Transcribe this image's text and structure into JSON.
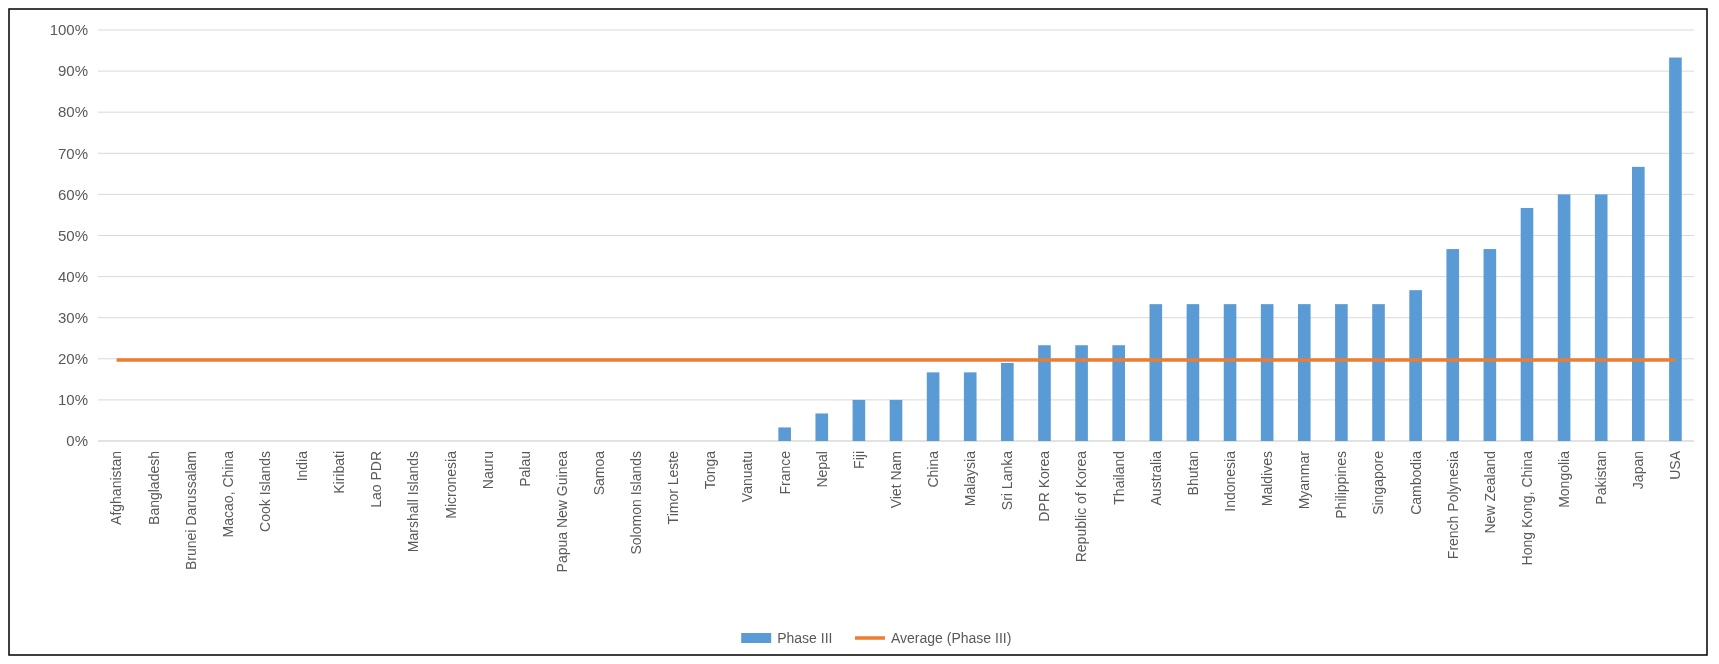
{
  "chart_data": {
    "type": "bar",
    "categories": [
      "Afghanistan",
      "Bangladesh",
      "Brunei Darussalam",
      "Macao, China",
      "Cook Islands",
      "India",
      "Kiribati",
      "Lao PDR",
      "Marshall Islands",
      "Micronesia",
      "Nauru",
      "Palau",
      "Papua New Guinea",
      "Samoa",
      "Solomon Islands",
      "Timor Leste",
      "Tonga",
      "Vanuatu",
      "France",
      "Nepal",
      "Fiji",
      "Viet Nam",
      "China",
      "Malaysia",
      "Sri Lanka",
      "DPR Korea",
      "Republic of Korea",
      "Thailand",
      "Australia",
      "Bhutan",
      "Indonesia",
      "Maldives",
      "Myanmar",
      "Philippines",
      "Singapore",
      "Cambodia",
      "French Polynesia",
      "New Zealand",
      "Hong Kong, China",
      "Mongolia",
      "Pakistan",
      "Japan",
      "USA"
    ],
    "series": [
      {
        "name": "Phase III",
        "color": "#5b9bd5",
        "values": [
          0,
          0,
          0,
          0,
          0,
          0,
          0,
          0,
          0,
          0,
          0,
          0,
          0,
          0,
          0,
          0,
          0,
          0,
          3.3,
          6.7,
          10,
          10,
          16.7,
          16.7,
          19,
          23.3,
          23.3,
          23.3,
          33.3,
          33.3,
          33.3,
          33.3,
          33.3,
          33.3,
          33.3,
          36.7,
          46.7,
          46.7,
          56.7,
          60,
          60,
          66.7,
          93.3
        ]
      },
      {
        "name": "Average (Phase III)",
        "type": "line",
        "color": "#ed7d31",
        "values": [
          19.7,
          19.7,
          19.7,
          19.7,
          19.7,
          19.7,
          19.7,
          19.7,
          19.7,
          19.7,
          19.7,
          19.7,
          19.7,
          19.7,
          19.7,
          19.7,
          19.7,
          19.7,
          19.7,
          19.7,
          19.7,
          19.7,
          19.7,
          19.7,
          19.7,
          19.7,
          19.7,
          19.7,
          19.7,
          19.7,
          19.7,
          19.7,
          19.7,
          19.7,
          19.7,
          19.7,
          19.7,
          19.7,
          19.7,
          19.7,
          19.7,
          19.7,
          19.7
        ]
      }
    ],
    "ylim": [
      0,
      100
    ],
    "yticks": [
      {
        "value": 0,
        "label": "0%"
      },
      {
        "value": 10,
        "label": "10%"
      },
      {
        "value": 20,
        "label": "20%"
      },
      {
        "value": 30,
        "label": "30%"
      },
      {
        "value": 40,
        "label": "40%"
      },
      {
        "value": 50,
        "label": "50%"
      },
      {
        "value": 60,
        "label": "60%"
      },
      {
        "value": 70,
        "label": "70%"
      },
      {
        "value": 80,
        "label": "80%"
      },
      {
        "value": 90,
        "label": "90%"
      },
      {
        "value": 100,
        "label": "100%"
      }
    ],
    "grid": "y",
    "legend": "bottom",
    "marker": "none"
  }
}
